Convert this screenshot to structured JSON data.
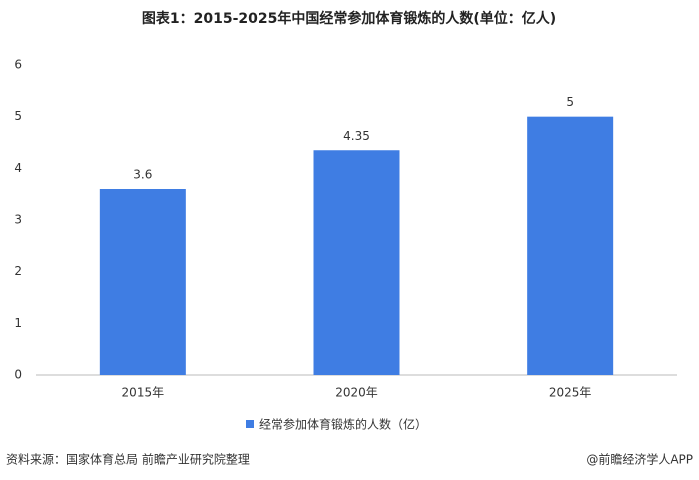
{
  "chart_data": {
    "type": "bar",
    "title": "图表1：2015-2025年中国经常参加体育锻炼的人数(单位：亿人)",
    "categories": [
      "2015年",
      "2020年",
      "2025年"
    ],
    "series": [
      {
        "name": "经常参加体育锻炼的人数（亿）",
        "color": "#3f7de3",
        "values": [
          3.6,
          4.35,
          5
        ]
      }
    ],
    "ylim": [
      0,
      6
    ],
    "yticks": [
      0,
      1,
      2,
      3,
      4,
      5,
      6
    ],
    "grid": false,
    "legend": "bottom"
  },
  "footer": {
    "source": "资料来源：国家体育总局 前瞻产业研究院整理",
    "brand": "@前瞻经济学人APP"
  }
}
